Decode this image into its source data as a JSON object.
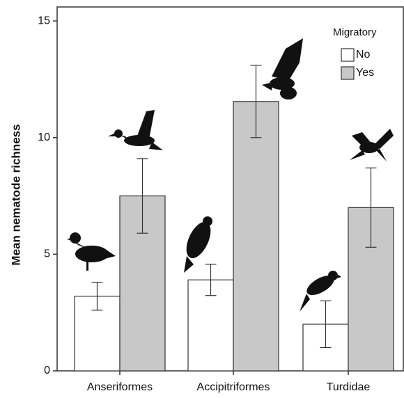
{
  "chart_data": {
    "type": "bar",
    "y_label": "Mean nematode richness",
    "categories": [
      "Anseriformes",
      "Accipitriformes",
      "Turdidae"
    ],
    "legend_title": "Migratory",
    "series": [
      {
        "name": "No",
        "color": "#ffffff",
        "values": [
          3.2,
          3.9,
          2.0
        ],
        "errors": [
          0.6,
          0.67,
          1.0
        ]
      },
      {
        "name": "Yes",
        "color": "#c8c8c8",
        "values": [
          7.5,
          11.55,
          7.0
        ],
        "errors": [
          1.6,
          1.55,
          1.7
        ]
      }
    ],
    "ylim": [
      0,
      15.6
    ],
    "yticks": [
      0,
      5,
      10,
      15
    ],
    "grid": false
  }
}
